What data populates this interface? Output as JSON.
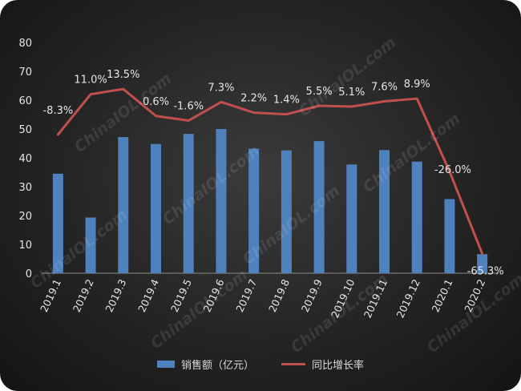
{
  "colors": {
    "bar": "#4f81bd",
    "line": "#c0504d",
    "text": "#e6e6e6",
    "background": "#262626"
  },
  "watermark": "ChinaIOL.com",
  "chart_data": {
    "type": "bar+line",
    "categories": [
      "2019.1",
      "2019.2",
      "2019.3",
      "2019.4",
      "2019.5",
      "2019.6",
      "2019.7",
      "2019.8",
      "2019.9",
      "2019.10",
      "2019.11",
      "2019.12",
      "2020.1",
      "2020.2"
    ],
    "series": [
      {
        "name": "销售额（亿元）",
        "type": "bar",
        "axis": "left",
        "values": [
          34.5,
          19.3,
          47.2,
          44.8,
          48.3,
          50.0,
          43.2,
          42.6,
          45.8,
          37.7,
          42.7,
          38.7,
          25.7,
          6.6
        ]
      },
      {
        "name": "同比增长率",
        "type": "line",
        "axis": "hidden",
        "values": [
          -8.3,
          11.0,
          13.5,
          0.6,
          -1.6,
          7.3,
          2.2,
          1.4,
          5.5,
          5.1,
          7.6,
          8.9,
          -26.0,
          -65.3
        ],
        "labels": [
          "-8.3%",
          "11.0%",
          "13.5%",
          "0.6%",
          "-1.6%",
          "7.3%",
          "2.2%",
          "1.4%",
          "5.5%",
          "5.1%",
          "7.6%",
          "8.9%",
          "-26.0%",
          "-65.3%"
        ]
      }
    ],
    "ylim": [
      0,
      80
    ],
    "yticks": [
      0,
      10,
      20,
      30,
      40,
      50,
      60,
      70,
      80
    ],
    "legend_position": "bottom",
    "grid": false
  }
}
